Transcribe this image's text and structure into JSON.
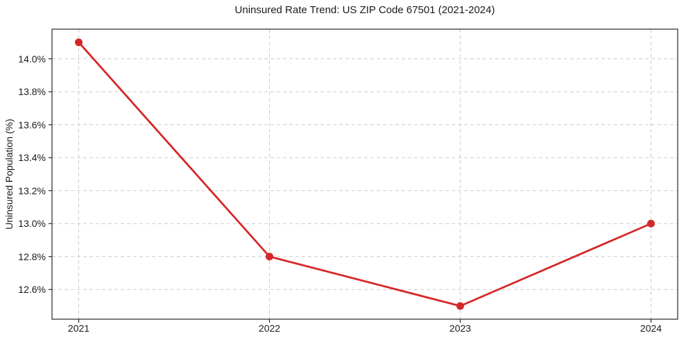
{
  "figure": {
    "background_color": "#ffffff"
  },
  "chart_data": {
    "type": "line",
    "title": "Uninsured Rate Trend: US ZIP Code 67501 (2021-2024)",
    "xlabel": "",
    "ylabel": "Uninsured Population (%)",
    "x": [
      2021,
      2022,
      2023,
      2024
    ],
    "values": [
      14.1,
      12.8,
      12.5,
      13.0
    ],
    "x_tick_labels": [
      "2021",
      "2022",
      "2023",
      "2024"
    ],
    "y_ticks": [
      12.6,
      12.8,
      13.0,
      13.2,
      13.4,
      13.6,
      13.8,
      14.0
    ],
    "y_tick_labels": [
      "12.6%",
      "12.8%",
      "13.0%",
      "13.2%",
      "13.4%",
      "13.6%",
      "13.8%",
      "14.0%"
    ],
    "xlim": [
      2020.86,
      2024.14
    ],
    "ylim": [
      12.42,
      14.18
    ],
    "grid": true,
    "grid_style": "dashed",
    "legend": false,
    "line_color": "#d62728",
    "marker": "circle",
    "grid_color": "#cccccc",
    "axis_color": "#262626"
  }
}
